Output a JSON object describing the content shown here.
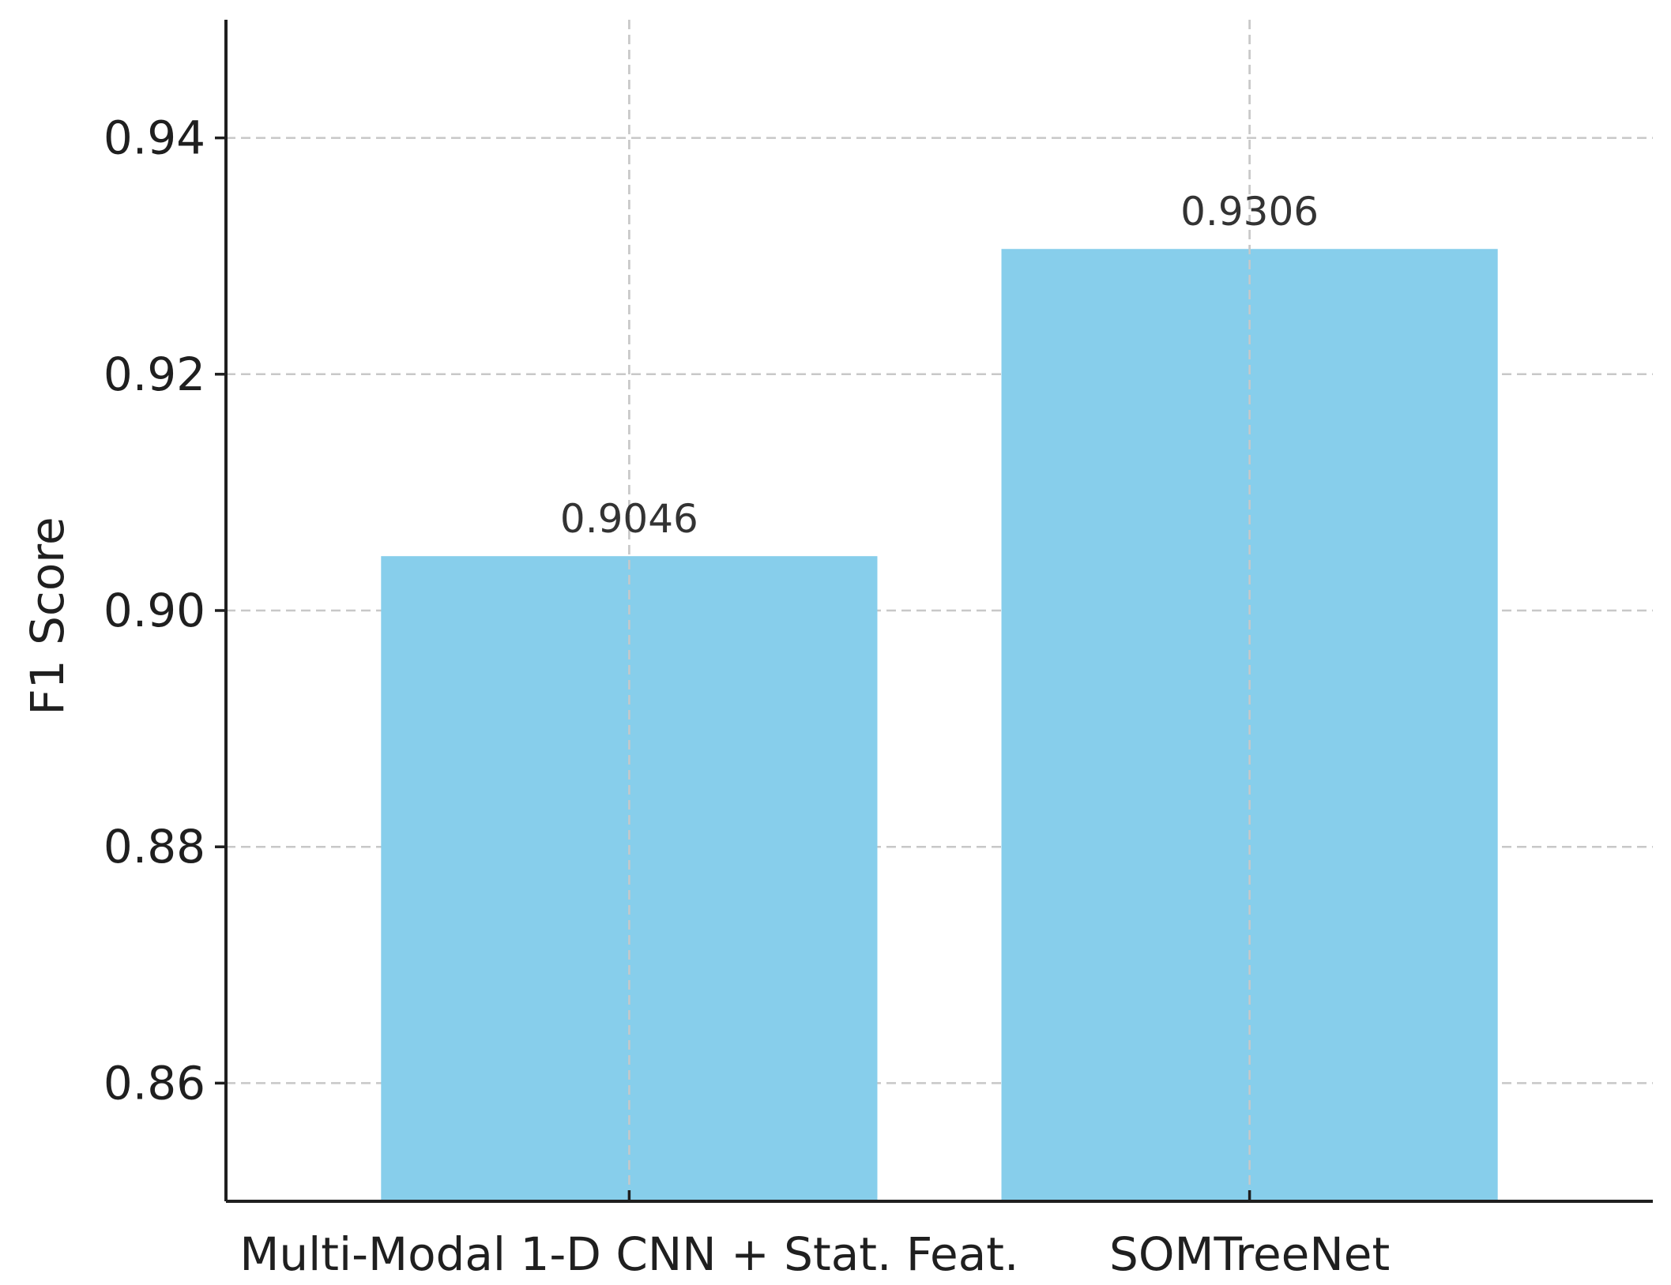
{
  "chart_data": {
    "type": "bar",
    "categories": [
      "Multi-Modal 1-D CNN + Stat. Feat.",
      "SOMTreeNet"
    ],
    "values": [
      0.9046,
      0.9306
    ],
    "value_labels": [
      "0.9046",
      "0.9306"
    ],
    "title": "",
    "xlabel": "",
    "ylabel": "F1 Score",
    "ylim": [
      0.85,
      0.95
    ],
    "yticks": [
      0.86,
      0.88,
      0.9,
      0.92,
      0.94
    ],
    "ytick_labels": [
      "0.86",
      "0.88",
      "0.90",
      "0.92",
      "0.94"
    ],
    "grid": true,
    "bar_color": "#87CEEB"
  }
}
